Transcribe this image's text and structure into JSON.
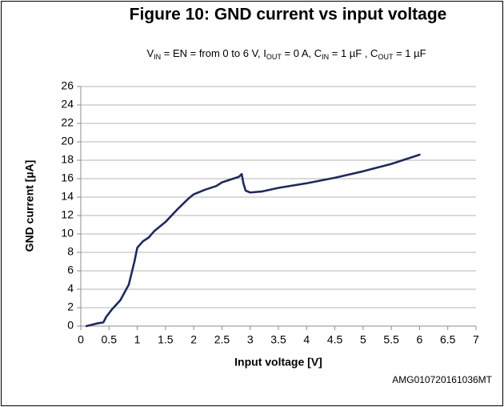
{
  "chart_data": {
    "type": "line",
    "title": "Figure 10: GND current vs input voltage",
    "subtitle": [
      {
        "text": "V"
      },
      {
        "sub": "IN"
      },
      {
        "text": " = EN = from 0 to 6 V, I"
      },
      {
        "sub": "OUT"
      },
      {
        "text": " = 0 A, C"
      },
      {
        "sub": "IN"
      },
      {
        "text": " = 1 µF , C"
      },
      {
        "sub": "OUT"
      },
      {
        "text": " = 1 µF"
      }
    ],
    "xlabel": "Input voltage [V]",
    "ylabel": "GND current [µA]",
    "footnote": "AMG010720161036MT",
    "xlim": [
      0,
      7
    ],
    "xticks": [
      0,
      0.5,
      1,
      1.5,
      2,
      2.5,
      3,
      3.5,
      4,
      4.5,
      5,
      5.5,
      6,
      6.5,
      7
    ],
    "ylim": [
      0,
      26
    ],
    "yticks": [
      0,
      2,
      4,
      6,
      8,
      10,
      12,
      14,
      16,
      18,
      20,
      22,
      24,
      26
    ],
    "grid": true,
    "series": [
      {
        "name": "GND current",
        "color": "#1f2a5c",
        "x": [
          0.1,
          0.2,
          0.3,
          0.4,
          0.45,
          0.55,
          0.7,
          0.85,
          0.95,
          1.0,
          1.1,
          1.2,
          1.3,
          1.5,
          1.7,
          1.9,
          2.0,
          2.2,
          2.4,
          2.5,
          2.7,
          2.8,
          2.85,
          2.88,
          2.92,
          3.0,
          3.2,
          3.5,
          4.0,
          4.5,
          5.0,
          5.5,
          6.0
        ],
        "values": [
          0,
          0.15,
          0.3,
          0.4,
          1,
          1.8,
          2.8,
          4.5,
          7,
          8.5,
          9.2,
          9.6,
          10.3,
          11.3,
          12.6,
          13.8,
          14.3,
          14.8,
          15.2,
          15.6,
          16.0,
          16.2,
          16.5,
          15.5,
          14.7,
          14.5,
          14.6,
          15.0,
          15.5,
          16.1,
          16.8,
          17.6,
          18.6
        ]
      }
    ]
  }
}
